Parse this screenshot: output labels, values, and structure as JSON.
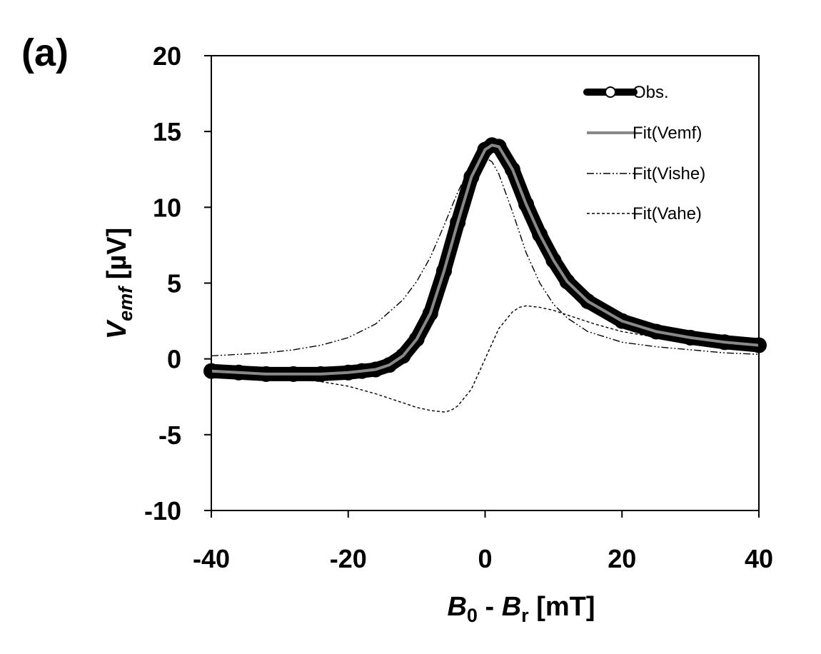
{
  "panel_label": "(a)",
  "chart_data": {
    "type": "line",
    "xlabel": {
      "main1": "B",
      "sub1": "0",
      "sep": " - ",
      "main2": "B",
      "sub2": "r",
      "unit": " [mT]"
    },
    "ylabel": {
      "main": "V",
      "sub": "emf",
      "unit": " [µV]"
    },
    "xlim": [
      -40,
      40
    ],
    "ylim": [
      -10,
      20
    ],
    "xticks": [
      -40,
      -20,
      0,
      20,
      40
    ],
    "yticks": [
      -10,
      -5,
      0,
      5,
      10,
      15,
      20
    ],
    "grid": false,
    "legend_position": "top-right",
    "series": [
      {
        "name": "Obs.",
        "style": "thick-black-markers",
        "color": "#000000",
        "x": [
          -40,
          -36,
          -32,
          -28,
          -24,
          -20,
          -18,
          -16,
          -14,
          -12,
          -10,
          -8,
          -6,
          -4,
          -2,
          0,
          1,
          2,
          4,
          6,
          8,
          10,
          12,
          15,
          20,
          25,
          30,
          35,
          40
        ],
        "y": [
          -0.8,
          -0.9,
          -1.0,
          -1.0,
          -1.0,
          -0.9,
          -0.8,
          -0.7,
          -0.4,
          0.2,
          1.3,
          3.0,
          5.8,
          9.0,
          12.0,
          13.8,
          14.1,
          14.0,
          12.5,
          10.2,
          8.2,
          6.5,
          5.1,
          3.8,
          2.5,
          1.8,
          1.4,
          1.1,
          0.9
        ]
      },
      {
        "name": "Fit(Vemf)",
        "style": "solid-gray",
        "color": "#888888",
        "x": [
          -40,
          -36,
          -32,
          -28,
          -24,
          -20,
          -18,
          -16,
          -14,
          -12,
          -10,
          -8,
          -6,
          -4,
          -2,
          0,
          1,
          2,
          4,
          6,
          8,
          10,
          12,
          15,
          20,
          25,
          30,
          35,
          40
        ],
        "y": [
          -0.8,
          -0.9,
          -1.0,
          -1.0,
          -1.0,
          -0.9,
          -0.8,
          -0.7,
          -0.4,
          0.2,
          1.3,
          3.0,
          5.8,
          9.0,
          12.0,
          13.8,
          14.1,
          14.0,
          12.5,
          10.2,
          8.2,
          6.5,
          5.1,
          3.8,
          2.5,
          1.8,
          1.4,
          1.1,
          0.9
        ]
      },
      {
        "name": "Fit(Vishe)",
        "style": "dash-dot-dot",
        "color": "#000000",
        "x": [
          -40,
          -36,
          -32,
          -28,
          -24,
          -20,
          -16,
          -12,
          -10,
          -8,
          -6,
          -4,
          -2,
          0,
          1,
          2,
          4,
          6,
          8,
          10,
          12,
          15,
          20,
          25,
          30,
          35,
          40
        ],
        "y": [
          0.2,
          0.3,
          0.4,
          0.6,
          0.9,
          1.4,
          2.3,
          3.9,
          5.1,
          6.7,
          8.8,
          11.0,
          12.8,
          13.3,
          13.0,
          12.2,
          9.7,
          7.0,
          5.0,
          3.6,
          2.7,
          1.8,
          1.1,
          0.8,
          0.6,
          0.4,
          0.3
        ]
      },
      {
        "name": "Fit(Vahe)",
        "style": "dashed",
        "color": "#000000",
        "x": [
          -40,
          -36,
          -32,
          -28,
          -24,
          -20,
          -16,
          -12,
          -10,
          -8,
          -6,
          -5,
          -4,
          -2,
          0,
          2,
          4,
          5,
          6,
          8,
          10,
          12,
          16,
          20,
          24,
          28,
          32,
          36,
          40
        ],
        "y": [
          -1.0,
          -1.1,
          -1.2,
          -1.3,
          -1.5,
          -1.8,
          -2.3,
          -2.9,
          -3.2,
          -3.4,
          -3.5,
          -3.4,
          -3.1,
          -2.0,
          0.0,
          2.0,
          3.1,
          3.4,
          3.5,
          3.4,
          3.2,
          2.9,
          2.3,
          1.8,
          1.5,
          1.3,
          1.2,
          1.1,
          1.0
        ]
      }
    ]
  }
}
